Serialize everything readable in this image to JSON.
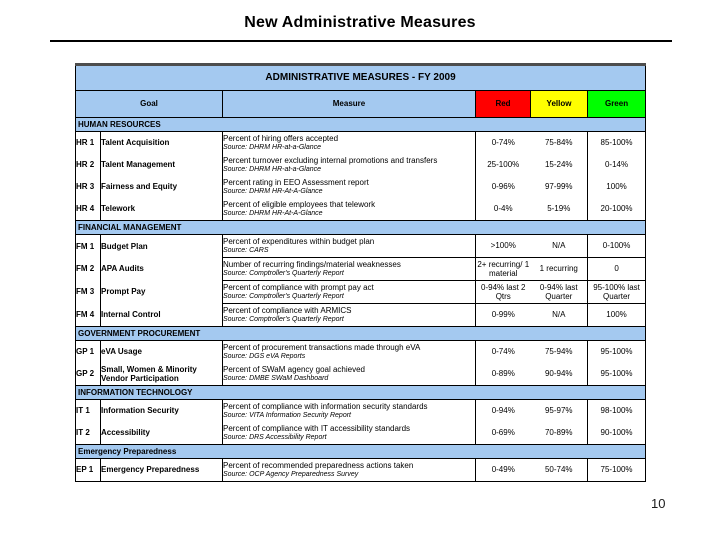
{
  "slide": {
    "title": "New Administrative Measures",
    "page_number": "10"
  },
  "table": {
    "title": "ADMINISTRATIVE MEASURES - FY 2009",
    "columns": {
      "goal": "Goal",
      "measure": "Measure",
      "red": "Red",
      "yellow": "Yellow",
      "green": "Green"
    },
    "colors": {
      "band_blue": "#a4c9f0",
      "red": "#ff0000",
      "yellow": "#ffff00",
      "green": "#00ff00"
    },
    "sections": [
      {
        "name": "HUMAN RESOURCES",
        "rows": [
          {
            "id": "HR 1",
            "goal": "Talent Acquisition",
            "measure": "Percent of hiring offers accepted",
            "source": "Source: DHRM HR-at-a-Glance",
            "red": "0-74%",
            "yellow": "75-84%",
            "green": "85-100%"
          },
          {
            "id": "HR 2",
            "goal": "Talent Management",
            "measure": "Percent turnover excluding internal promotions and transfers",
            "source": "Source: DHRM HR-at-a-Glance",
            "red": "25-100%",
            "yellow": "15-24%",
            "green": "0-14%"
          },
          {
            "id": "HR 3",
            "goal": "Fairness and Equity",
            "measure": "Percent rating in EEO Assessment report",
            "source": "Source: DHRM HR-At-A-Glance",
            "red": "0-96%",
            "yellow": "97-99%",
            "green": "100%"
          },
          {
            "id": "HR 4",
            "goal": "Telework",
            "measure": "Percent of eligible employees that telework",
            "source": "Source: DHRM HR-At-A-Glance",
            "red": "0-4%",
            "yellow": "5-19%",
            "green": "20-100%"
          }
        ]
      },
      {
        "name": "FINANCIAL MANAGEMENT",
        "row_borders": true,
        "rows": [
          {
            "id": "FM 1",
            "goal": "Budget Plan",
            "measure": "Percent of expenditures within budget plan",
            "source": "Source: CARS",
            "red": ">100%",
            "yellow": "N/A",
            "green": "0-100%"
          },
          {
            "id": "FM 2",
            "goal": "APA Audits",
            "measure": "Number of recurring findings/material weaknesses",
            "source": "Source: Comptroller's Quarterly Report",
            "red": "2+ recurring/ 1 material",
            "yellow": "1 recurring",
            "green": "0"
          },
          {
            "id": "FM 3",
            "goal": "Prompt Pay",
            "measure": "Percent of compliance with prompt pay act",
            "source": "Source: Comptroller's Quarterly Report",
            "red": "0-94% last 2 Qtrs",
            "yellow": "0-94% last Quarter",
            "green": "95-100% last Quarter"
          },
          {
            "id": "FM 4",
            "goal": "Internal Control",
            "measure": "Percent of compliance with ARMICS",
            "source": "Source: Comptroller's Quarterly Report",
            "red": "0-99%",
            "yellow": "N/A",
            "green": "100%"
          }
        ]
      },
      {
        "name": "GOVERNMENT PROCUREMENT",
        "rows": [
          {
            "id": "GP 1",
            "goal": "eVA Usage",
            "measure": "Percent of procurement transactions made through eVA",
            "source": "Source: DGS eVA Reports",
            "red": "0-74%",
            "yellow": "75-94%",
            "green": "95-100%"
          },
          {
            "id": "GP 2",
            "goal": "Small, Women & Minority Vendor Participation",
            "measure": "Percent of SWaM agency goal achieved",
            "source": "Source: DMBE SWaM Dashboard",
            "red": "0-89%",
            "yellow": "90-94%",
            "green": "95-100%"
          }
        ]
      },
      {
        "name": "INFORMATION TECHNOLOGY",
        "rows": [
          {
            "id": "IT 1",
            "goal": "Information Security",
            "measure": "Percent of compliance with information security standards",
            "source": "Source: VITA Information Security Report",
            "red": "0-94%",
            "yellow": "95-97%",
            "green": "98-100%"
          },
          {
            "id": "IT 2",
            "goal": "Accessibility",
            "measure": "Percent of compliance with IT accessibility standards",
            "source": "Source: DRS Accessibility Report",
            "red": "0-69%",
            "yellow": "70-89%",
            "green": "90-100%"
          }
        ]
      },
      {
        "name": "Emergency Preparedness",
        "rows": [
          {
            "id": "EP 1",
            "goal": "Emergency Preparedness",
            "measure": "Percent of recommended preparedness actions taken",
            "source": "Source: OCP Agency Preparedness Survey",
            "red": "0-49%",
            "yellow": "50-74%",
            "green": "75-100%"
          }
        ]
      }
    ]
  }
}
